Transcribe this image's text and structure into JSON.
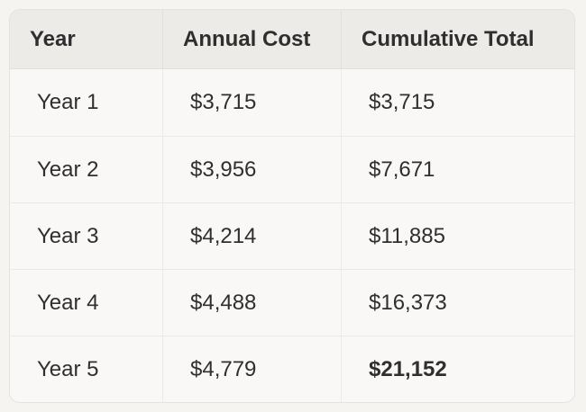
{
  "page": {
    "background": "#f5f4f1"
  },
  "table": {
    "header": {
      "year": "Year",
      "annual_cost": "Annual Cost",
      "cumulative_total": "Cumulative Total"
    },
    "rows": [
      {
        "year": "Year 1",
        "annual_cost": "$3,715",
        "cumulative_total": "$3,715"
      },
      {
        "year": "Year 2",
        "annual_cost": "$3,956",
        "cumulative_total": "$7,671"
      },
      {
        "year": "Year 3",
        "annual_cost": "$4,214",
        "cumulative_total": "$11,885"
      },
      {
        "year": "Year 4",
        "annual_cost": "$4,488",
        "cumulative_total": "$16,373"
      },
      {
        "year": "Year 5",
        "annual_cost": "$4,779",
        "cumulative_total": "$21,152"
      }
    ],
    "colors": {
      "header_bg": "#ecebe8",
      "row_bg": "#f9f8f6",
      "border": "#e5e3e0",
      "divider": "#eceae7",
      "text": "#2f2f2f",
      "page_bg": "#f5f4f1"
    }
  },
  "chart_data": {
    "type": "table",
    "title": "",
    "columns": [
      "Year",
      "Annual Cost",
      "Cumulative Total"
    ],
    "rows": [
      [
        "Year 1",
        3715,
        3715
      ],
      [
        "Year 2",
        3956,
        7671
      ],
      [
        "Year 3",
        4214,
        11885
      ],
      [
        "Year 4",
        4488,
        16373
      ],
      [
        "Year 5",
        4779,
        21152
      ]
    ]
  }
}
